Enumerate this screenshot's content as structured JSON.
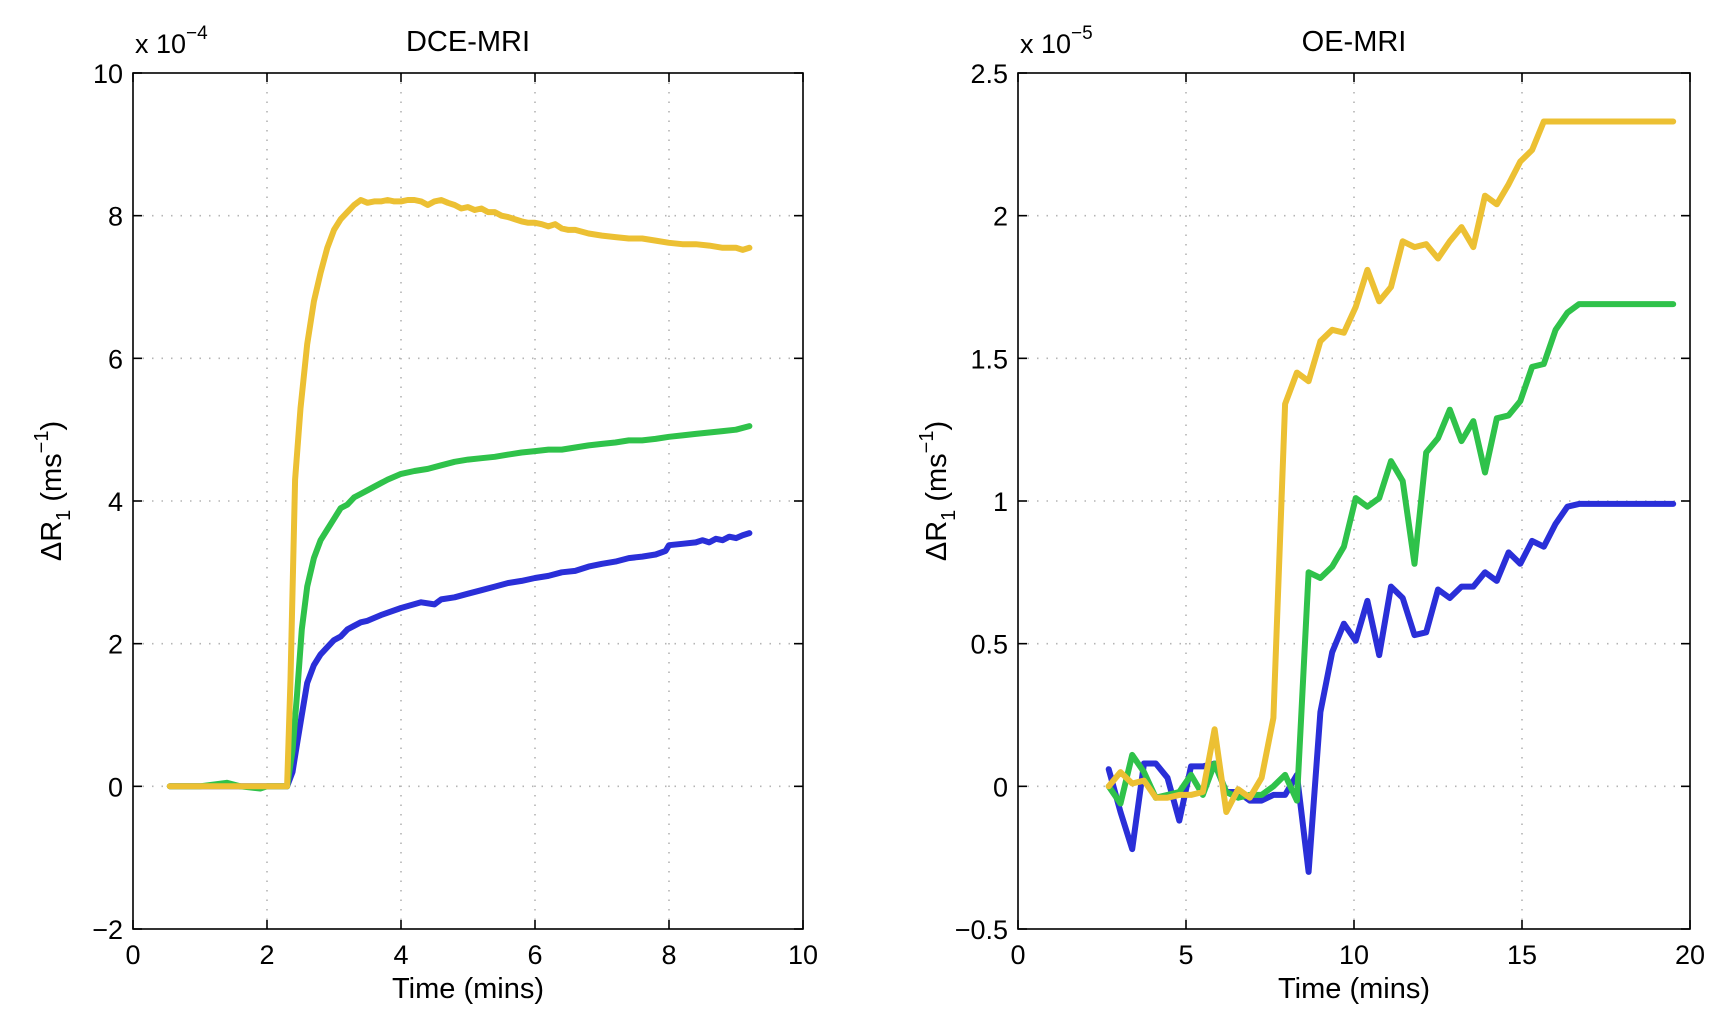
{
  "chart_data": [
    {
      "type": "line",
      "title": "DCE-MRI",
      "xlabel": "Time (mins)",
      "ylabel": "ΔR1 (ms−1)",
      "ylabel_parts": {
        "prefix": "ΔR",
        "sub": "1",
        "unit_open": " (ms",
        "sup": "−1",
        "unit_close": ")"
      },
      "scale_label": "x 10",
      "scale_exponent": "−4",
      "xlim": [
        0,
        10
      ],
      "ylim": [
        -2,
        10
      ],
      "xticks": [
        0,
        2,
        4,
        6,
        8,
        10
      ],
      "yticks": [
        -2,
        0,
        2,
        4,
        6,
        8,
        10
      ],
      "xtick_labels": [
        "0",
        "2",
        "4",
        "6",
        "8",
        "10"
      ],
      "ytick_labels": [
        "−2",
        "0",
        "2",
        "4",
        "6",
        "8",
        "10"
      ],
      "grid": true,
      "series": [
        {
          "name": "blue",
          "color": "#2a2fd8",
          "x": [
            0.55,
            1.0,
            1.5,
            2.0,
            2.3,
            2.38,
            2.45,
            2.52,
            2.6,
            2.7,
            2.8,
            2.9,
            3.0,
            3.1,
            3.2,
            3.3,
            3.4,
            3.5,
            3.7,
            4.0,
            4.3,
            4.5,
            4.6,
            4.8,
            5.0,
            5.2,
            5.4,
            5.6,
            5.8,
            6.0,
            6.2,
            6.4,
            6.6,
            6.8,
            7.0,
            7.2,
            7.4,
            7.6,
            7.8,
            7.95,
            8.0,
            8.2,
            8.4,
            8.5,
            8.6,
            8.7,
            8.8,
            8.9,
            9.0,
            9.1,
            9.2
          ],
          "y": [
            0,
            0,
            0,
            0,
            0,
            0.2,
            0.6,
            1.0,
            1.45,
            1.7,
            1.85,
            1.95,
            2.05,
            2.1,
            2.2,
            2.25,
            2.3,
            2.32,
            2.4,
            2.5,
            2.58,
            2.55,
            2.62,
            2.65,
            2.7,
            2.75,
            2.8,
            2.85,
            2.88,
            2.92,
            2.95,
            3.0,
            3.02,
            3.08,
            3.12,
            3.15,
            3.2,
            3.22,
            3.25,
            3.3,
            3.38,
            3.4,
            3.42,
            3.45,
            3.42,
            3.47,
            3.45,
            3.5,
            3.48,
            3.52,
            3.55
          ]
        },
        {
          "name": "green",
          "color": "#2fc24a",
          "x": [
            0.55,
            1.0,
            1.4,
            1.6,
            1.9,
            2.0,
            2.3,
            2.38,
            2.45,
            2.52,
            2.6,
            2.7,
            2.8,
            2.9,
            3.0,
            3.1,
            3.2,
            3.3,
            3.4,
            3.5,
            3.6,
            3.8,
            4.0,
            4.2,
            4.4,
            4.6,
            4.8,
            5.0,
            5.2,
            5.4,
            5.6,
            5.8,
            6.0,
            6.2,
            6.4,
            6.6,
            6.8,
            7.0,
            7.2,
            7.4,
            7.6,
            7.8,
            8.0,
            8.2,
            8.4,
            8.6,
            8.8,
            9.0,
            9.2
          ],
          "y": [
            0,
            0,
            0.05,
            0,
            -0.03,
            0,
            0,
            0.5,
            1.3,
            2.2,
            2.8,
            3.2,
            3.45,
            3.6,
            3.75,
            3.9,
            3.95,
            4.05,
            4.1,
            4.15,
            4.2,
            4.3,
            4.38,
            4.42,
            4.45,
            4.5,
            4.55,
            4.58,
            4.6,
            4.62,
            4.65,
            4.68,
            4.7,
            4.72,
            4.72,
            4.75,
            4.78,
            4.8,
            4.82,
            4.85,
            4.85,
            4.87,
            4.9,
            4.92,
            4.94,
            4.96,
            4.98,
            5.0,
            5.05
          ]
        },
        {
          "name": "yellow",
          "color": "#ecc033",
          "x": [
            0.55,
            1.0,
            1.5,
            2.0,
            2.3,
            2.35,
            2.42,
            2.5,
            2.6,
            2.7,
            2.8,
            2.9,
            3.0,
            3.1,
            3.2,
            3.3,
            3.4,
            3.5,
            3.6,
            3.7,
            3.8,
            3.9,
            4.0,
            4.1,
            4.2,
            4.3,
            4.4,
            4.5,
            4.6,
            4.7,
            4.8,
            4.9,
            5.0,
            5.1,
            5.2,
            5.3,
            5.4,
            5.5,
            5.6,
            5.7,
            5.8,
            5.9,
            6.0,
            6.1,
            6.2,
            6.3,
            6.4,
            6.5,
            6.6,
            6.8,
            7.0,
            7.2,
            7.4,
            7.6,
            7.8,
            8.0,
            8.2,
            8.4,
            8.6,
            8.8,
            9.0,
            9.1,
            9.2
          ],
          "y": [
            0,
            0,
            0,
            0,
            0,
            1.5,
            4.3,
            5.3,
            6.2,
            6.8,
            7.2,
            7.55,
            7.8,
            7.95,
            8.05,
            8.15,
            8.22,
            8.18,
            8.2,
            8.2,
            8.22,
            8.2,
            8.2,
            8.22,
            8.22,
            8.2,
            8.15,
            8.2,
            8.22,
            8.18,
            8.15,
            8.1,
            8.12,
            8.08,
            8.1,
            8.05,
            8.05,
            8.0,
            7.98,
            7.95,
            7.92,
            7.9,
            7.9,
            7.88,
            7.85,
            7.88,
            7.82,
            7.8,
            7.8,
            7.75,
            7.72,
            7.7,
            7.68,
            7.68,
            7.65,
            7.62,
            7.6,
            7.6,
            7.58,
            7.55,
            7.55,
            7.52,
            7.55
          ]
        }
      ]
    },
    {
      "type": "line",
      "title": "OE-MRI",
      "xlabel": "Time (mins)",
      "ylabel": "ΔR1 (ms−1)",
      "ylabel_parts": {
        "prefix": "ΔR",
        "sub": "1",
        "unit_open": " (ms",
        "sup": "−1",
        "unit_close": ")"
      },
      "scale_label": "x 10",
      "scale_exponent": "−5",
      "xlim": [
        0,
        20
      ],
      "ylim": [
        -0.5,
        2.5
      ],
      "xticks": [
        0,
        5,
        10,
        15,
        20
      ],
      "yticks": [
        -0.5,
        0,
        0.5,
        1,
        1.5,
        2,
        2.5
      ],
      "xtick_labels": [
        "0",
        "5",
        "10",
        "15",
        "20"
      ],
      "ytick_labels": [
        "−0.5",
        "0",
        "0.5",
        "1",
        "1.5",
        "2",
        "2.5"
      ],
      "grid": true,
      "series": [
        {
          "name": "blue",
          "color": "#2a2fd8",
          "x": [
            2.7,
            3.05,
            3.4,
            3.75,
            4.1,
            4.45,
            4.8,
            5.15,
            5.5,
            5.85,
            6.2,
            6.55,
            6.9,
            7.25,
            7.6,
            7.95,
            8.3,
            8.65,
            9.0,
            9.35,
            9.7,
            10.05,
            10.4,
            10.75,
            11.1,
            11.45,
            11.8,
            12.15,
            12.5,
            12.85,
            13.2,
            13.55,
            13.9,
            14.25,
            14.6,
            14.95,
            15.3,
            15.65,
            16.0,
            16.35,
            16.7,
            17.05,
            17.4,
            17.75,
            18.1,
            18.45,
            18.8,
            19.15,
            19.5
          ],
          "y": [
            0.06,
            -0.09,
            -0.22,
            0.08,
            0.08,
            0.03,
            -0.12,
            0.07,
            0.07,
            0.08,
            -0.02,
            -0.02,
            -0.05,
            -0.05,
            -0.03,
            -0.03,
            0.04,
            -0.3,
            0.26,
            0.47,
            0.57,
            0.51,
            0.65,
            0.46,
            0.7,
            0.66,
            0.53,
            0.54,
            0.69,
            0.66,
            0.7,
            0.7,
            0.75,
            0.72,
            0.82,
            0.78,
            0.86,
            0.84,
            0.92,
            0.98,
            0.99,
            0.99,
            0.99,
            0.99,
            0.99,
            0.99,
            0.99,
            0.99,
            0.99
          ]
        },
        {
          "name": "green",
          "color": "#2fc24a",
          "x": [
            2.7,
            3.05,
            3.4,
            3.75,
            4.1,
            4.45,
            4.8,
            5.15,
            5.5,
            5.85,
            6.2,
            6.55,
            6.9,
            7.25,
            7.6,
            7.95,
            8.3,
            8.65,
            9.0,
            9.35,
            9.7,
            10.05,
            10.4,
            10.75,
            11.1,
            11.45,
            11.8,
            12.15,
            12.5,
            12.85,
            13.2,
            13.55,
            13.9,
            14.25,
            14.6,
            14.95,
            15.3,
            15.65,
            16.0,
            16.35,
            16.7,
            17.05,
            17.4,
            17.75,
            18.1,
            18.45,
            18.8,
            19.15,
            19.5
          ],
          "y": [
            0.0,
            -0.06,
            0.11,
            0.05,
            -0.04,
            -0.03,
            -0.02,
            0.04,
            -0.03,
            0.08,
            -0.02,
            -0.04,
            -0.03,
            -0.03,
            0.0,
            0.04,
            -0.05,
            0.75,
            0.73,
            0.77,
            0.84,
            1.01,
            0.98,
            1.01,
            1.14,
            1.07,
            0.78,
            1.17,
            1.22,
            1.32,
            1.21,
            1.28,
            1.1,
            1.29,
            1.3,
            1.35,
            1.47,
            1.48,
            1.6,
            1.66,
            1.69,
            1.69,
            1.69,
            1.69,
            1.69,
            1.69,
            1.69,
            1.69,
            1.69
          ]
        },
        {
          "name": "yellow",
          "color": "#ecc033",
          "x": [
            2.7,
            3.05,
            3.4,
            3.75,
            4.1,
            4.45,
            4.8,
            5.15,
            5.5,
            5.85,
            6.2,
            6.55,
            6.9,
            7.25,
            7.6,
            7.95,
            8.3,
            8.65,
            9.0,
            9.35,
            9.7,
            10.05,
            10.4,
            10.75,
            11.1,
            11.45,
            11.8,
            12.15,
            12.5,
            12.85,
            13.2,
            13.55,
            13.9,
            14.25,
            14.6,
            14.95,
            15.3,
            15.65,
            16.0,
            16.35,
            16.7,
            17.05,
            17.4,
            17.75,
            18.1,
            18.45,
            18.8,
            19.15,
            19.5
          ],
          "y": [
            0.0,
            0.05,
            0.01,
            0.02,
            -0.04,
            -0.04,
            -0.03,
            -0.03,
            -0.02,
            0.2,
            -0.09,
            -0.01,
            -0.04,
            0.03,
            0.24,
            1.34,
            1.45,
            1.42,
            1.56,
            1.6,
            1.59,
            1.68,
            1.81,
            1.7,
            1.75,
            1.91,
            1.89,
            1.9,
            1.85,
            1.91,
            1.96,
            1.89,
            2.07,
            2.04,
            2.11,
            2.19,
            2.23,
            2.33,
            2.33,
            2.33,
            2.33,
            2.33,
            2.33,
            2.33,
            2.33,
            2.33,
            2.33,
            2.33,
            2.33
          ]
        }
      ]
    }
  ]
}
